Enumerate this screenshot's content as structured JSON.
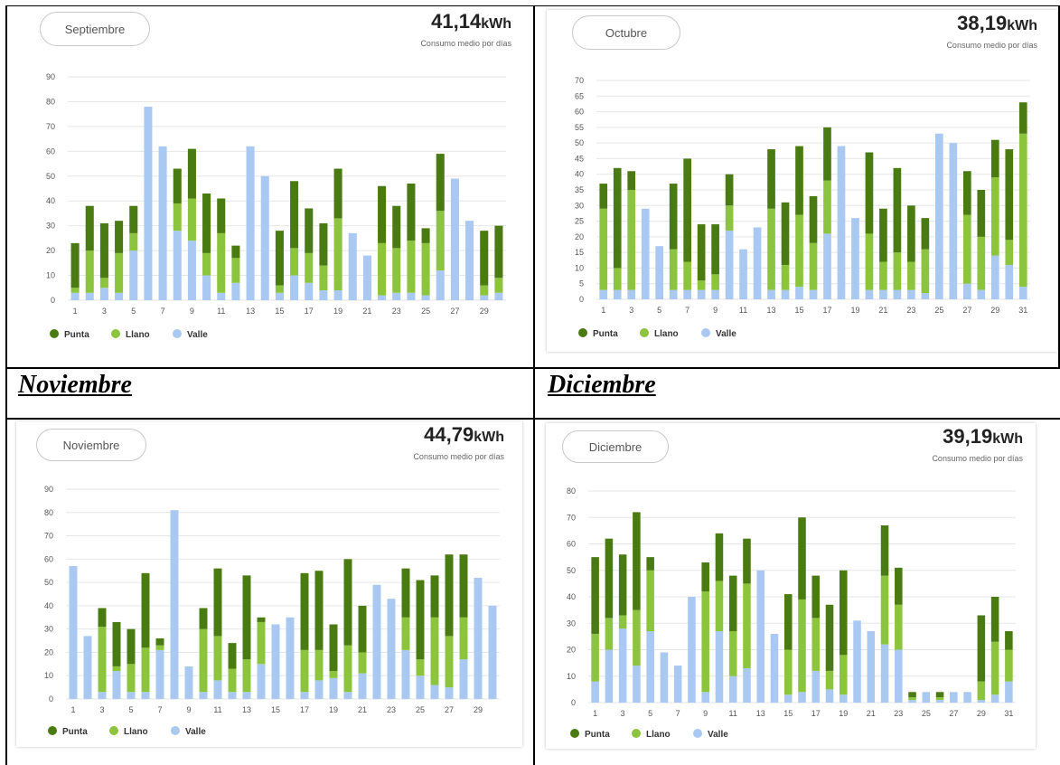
{
  "section_labels": {
    "noviembre": "Noviembre",
    "diciembre": "Diciembre"
  },
  "legend": {
    "punta": "Punta",
    "llano": "Llano",
    "valle": "Valle"
  },
  "colors": {
    "punta": "#4a7a12",
    "llano": "#8cc43e",
    "valle": "#a9c9f2",
    "grid": "#e6e6e6",
    "axis_text": "#555555"
  },
  "panels": {
    "sep": {
      "month": "Septiembre",
      "total_value": "41,14",
      "total_unit": "kWh",
      "subtitle": "Consumo medio por días"
    },
    "oct": {
      "month": "Octubre",
      "total_value": "38,19",
      "total_unit": "kWh",
      "subtitle": "Consumo medio por días"
    },
    "nov": {
      "month": "Noviembre",
      "total_value": "44,79",
      "total_unit": "kWh",
      "subtitle": "Consumo medio por días"
    },
    "dic": {
      "month": "Diciembre",
      "total_value": "39,19",
      "total_unit": "kWh",
      "subtitle": "Consumo medio por días"
    }
  },
  "chart_data": [
    {
      "id": "sep",
      "type": "bar",
      "stacked": true,
      "ylim": [
        0,
        90
      ],
      "y_ticks": [
        0,
        10,
        20,
        30,
        40,
        50,
        60,
        70,
        80,
        90
      ],
      "x_tick_labels": [
        "1",
        "3",
        "5",
        "7",
        "9",
        "11",
        "13",
        "15",
        "17",
        "19",
        "21",
        "23",
        "25",
        "27",
        "29"
      ],
      "categories": [
        "1",
        "2",
        "3",
        "4",
        "5",
        "6",
        "7",
        "8",
        "9",
        "10",
        "11",
        "12",
        "13",
        "14",
        "15",
        "16",
        "17",
        "18",
        "19",
        "20",
        "21",
        "22",
        "23",
        "24",
        "25",
        "26",
        "27",
        "28",
        "29",
        "30"
      ],
      "series": [
        {
          "name": "Valle",
          "values": [
            3,
            3,
            5,
            3,
            20,
            78,
            62,
            28,
            24,
            10,
            3,
            7,
            62,
            50,
            3,
            10,
            7,
            4,
            4,
            27,
            18,
            2,
            3,
            3,
            2,
            12,
            49,
            32,
            2,
            3
          ]
        },
        {
          "name": "Llano",
          "values": [
            2,
            17,
            4,
            16,
            7,
            0,
            0,
            11,
            17,
            9,
            24,
            10,
            0,
            0,
            3,
            11,
            12,
            10,
            29,
            0,
            0,
            21,
            18,
            21,
            21,
            24,
            0,
            0,
            4,
            6
          ]
        },
        {
          "name": "Punta",
          "values": [
            18,
            18,
            22,
            13,
            11,
            0,
            0,
            14,
            20,
            24,
            14,
            5,
            0,
            0,
            22,
            27,
            18,
            17,
            20,
            0,
            0,
            23,
            17,
            23,
            6,
            23,
            0,
            0,
            22,
            21
          ]
        }
      ]
    },
    {
      "id": "oct",
      "type": "bar",
      "stacked": true,
      "ylim": [
        0,
        70
      ],
      "y_ticks": [
        0,
        5,
        10,
        15,
        20,
        25,
        30,
        35,
        40,
        45,
        50,
        55,
        60,
        65,
        70
      ],
      "x_tick_labels": [
        "1",
        "3",
        "5",
        "7",
        "9",
        "11",
        "13",
        "15",
        "17",
        "19",
        "21",
        "23",
        "25",
        "27",
        "29",
        "31"
      ],
      "categories": [
        "1",
        "2",
        "3",
        "4",
        "5",
        "6",
        "7",
        "8",
        "9",
        "10",
        "11",
        "12",
        "13",
        "14",
        "15",
        "16",
        "17",
        "18",
        "19",
        "20",
        "21",
        "22",
        "23",
        "24",
        "25",
        "26",
        "27",
        "28",
        "29",
        "30",
        "31"
      ],
      "series": [
        {
          "name": "Valle",
          "values": [
            3,
            3,
            3,
            29,
            17,
            3,
            3,
            3,
            3,
            22,
            16,
            23,
            3,
            3,
            4,
            3,
            21,
            49,
            26,
            3,
            3,
            3,
            3,
            2,
            53,
            50,
            5,
            3,
            14,
            11,
            4
          ]
        },
        {
          "name": "Llano",
          "values": [
            26,
            7,
            32,
            0,
            0,
            13,
            9,
            3,
            5,
            8,
            0,
            0,
            26,
            8,
            23,
            15,
            17,
            0,
            0,
            18,
            9,
            12,
            9,
            14,
            0,
            0,
            22,
            17,
            25,
            8,
            49
          ]
        },
        {
          "name": "Punta",
          "values": [
            8,
            32,
            6,
            0,
            0,
            21,
            33,
            18,
            16,
            10,
            0,
            0,
            19,
            20,
            22,
            15,
            17,
            0,
            0,
            26,
            17,
            27,
            18,
            10,
            0,
            0,
            14,
            15,
            12,
            29,
            10
          ]
        }
      ]
    },
    {
      "id": "nov",
      "type": "bar",
      "stacked": true,
      "ylim": [
        0,
        90
      ],
      "y_ticks": [
        0,
        10,
        20,
        30,
        40,
        50,
        60,
        70,
        80,
        90
      ],
      "x_tick_labels": [
        "1",
        "3",
        "5",
        "7",
        "9",
        "11",
        "13",
        "15",
        "17",
        "19",
        "21",
        "23",
        "25",
        "27",
        "29"
      ],
      "categories": [
        "1",
        "2",
        "3",
        "4",
        "5",
        "6",
        "7",
        "8",
        "9",
        "10",
        "11",
        "12",
        "13",
        "14",
        "15",
        "16",
        "17",
        "18",
        "19",
        "20",
        "21",
        "22",
        "23",
        "24",
        "25",
        "26",
        "27",
        "28",
        "29",
        "30"
      ],
      "series": [
        {
          "name": "Valle",
          "values": [
            57,
            27,
            3,
            12,
            3,
            3,
            21,
            81,
            14,
            3,
            8,
            3,
            3,
            15,
            32,
            35,
            3,
            8,
            9,
            3,
            11,
            49,
            43,
            21,
            10,
            6,
            5,
            17,
            52,
            40
          ]
        },
        {
          "name": "Llano",
          "values": [
            0,
            0,
            28,
            2,
            12,
            19,
            2,
            0,
            0,
            27,
            19,
            10,
            14,
            18,
            0,
            0,
            18,
            13,
            3,
            20,
            9,
            0,
            0,
            14,
            7,
            29,
            22,
            18,
            0,
            0
          ]
        },
        {
          "name": "Punta",
          "values": [
            0,
            0,
            8,
            19,
            15,
            32,
            3,
            0,
            0,
            9,
            29,
            11,
            36,
            2,
            0,
            0,
            33,
            34,
            20,
            37,
            20,
            0,
            0,
            21,
            34,
            18,
            35,
            27,
            0,
            0
          ]
        }
      ]
    },
    {
      "id": "dic",
      "type": "bar",
      "stacked": true,
      "ylim": [
        0,
        80
      ],
      "y_ticks": [
        0,
        10,
        20,
        30,
        40,
        50,
        60,
        70,
        80
      ],
      "x_tick_labels": [
        "1",
        "3",
        "5",
        "7",
        "9",
        "11",
        "13",
        "15",
        "17",
        "19",
        "21",
        "23",
        "25",
        "27",
        "29",
        "31"
      ],
      "categories": [
        "1",
        "2",
        "3",
        "4",
        "5",
        "6",
        "7",
        "8",
        "9",
        "10",
        "11",
        "12",
        "13",
        "14",
        "15",
        "16",
        "17",
        "18",
        "19",
        "20",
        "21",
        "22",
        "23",
        "24",
        "25",
        "26",
        "27",
        "28",
        "29",
        "30",
        "31"
      ],
      "series": [
        {
          "name": "Valle",
          "values": [
            8,
            20,
            28,
            14,
            27,
            19,
            14,
            40,
            4,
            27,
            10,
            13,
            50,
            26,
            3,
            4,
            12,
            5,
            3,
            31,
            27,
            22,
            20,
            1,
            4,
            1,
            4,
            4,
            1,
            3,
            8
          ]
        },
        {
          "name": "Llano",
          "values": [
            18,
            12,
            5,
            21,
            23,
            0,
            0,
            0,
            38,
            19,
            17,
            32,
            0,
            0,
            17,
            35,
            20,
            7,
            15,
            0,
            0,
            26,
            17,
            1,
            0,
            1,
            0,
            0,
            7,
            20,
            12
          ]
        },
        {
          "name": "Punta",
          "values": [
            29,
            30,
            23,
            37,
            5,
            0,
            0,
            0,
            11,
            18,
            21,
            17,
            0,
            0,
            21,
            31,
            16,
            25,
            32,
            0,
            0,
            19,
            14,
            2,
            0,
            2,
            0,
            0,
            25,
            17,
            7
          ]
        }
      ]
    }
  ]
}
